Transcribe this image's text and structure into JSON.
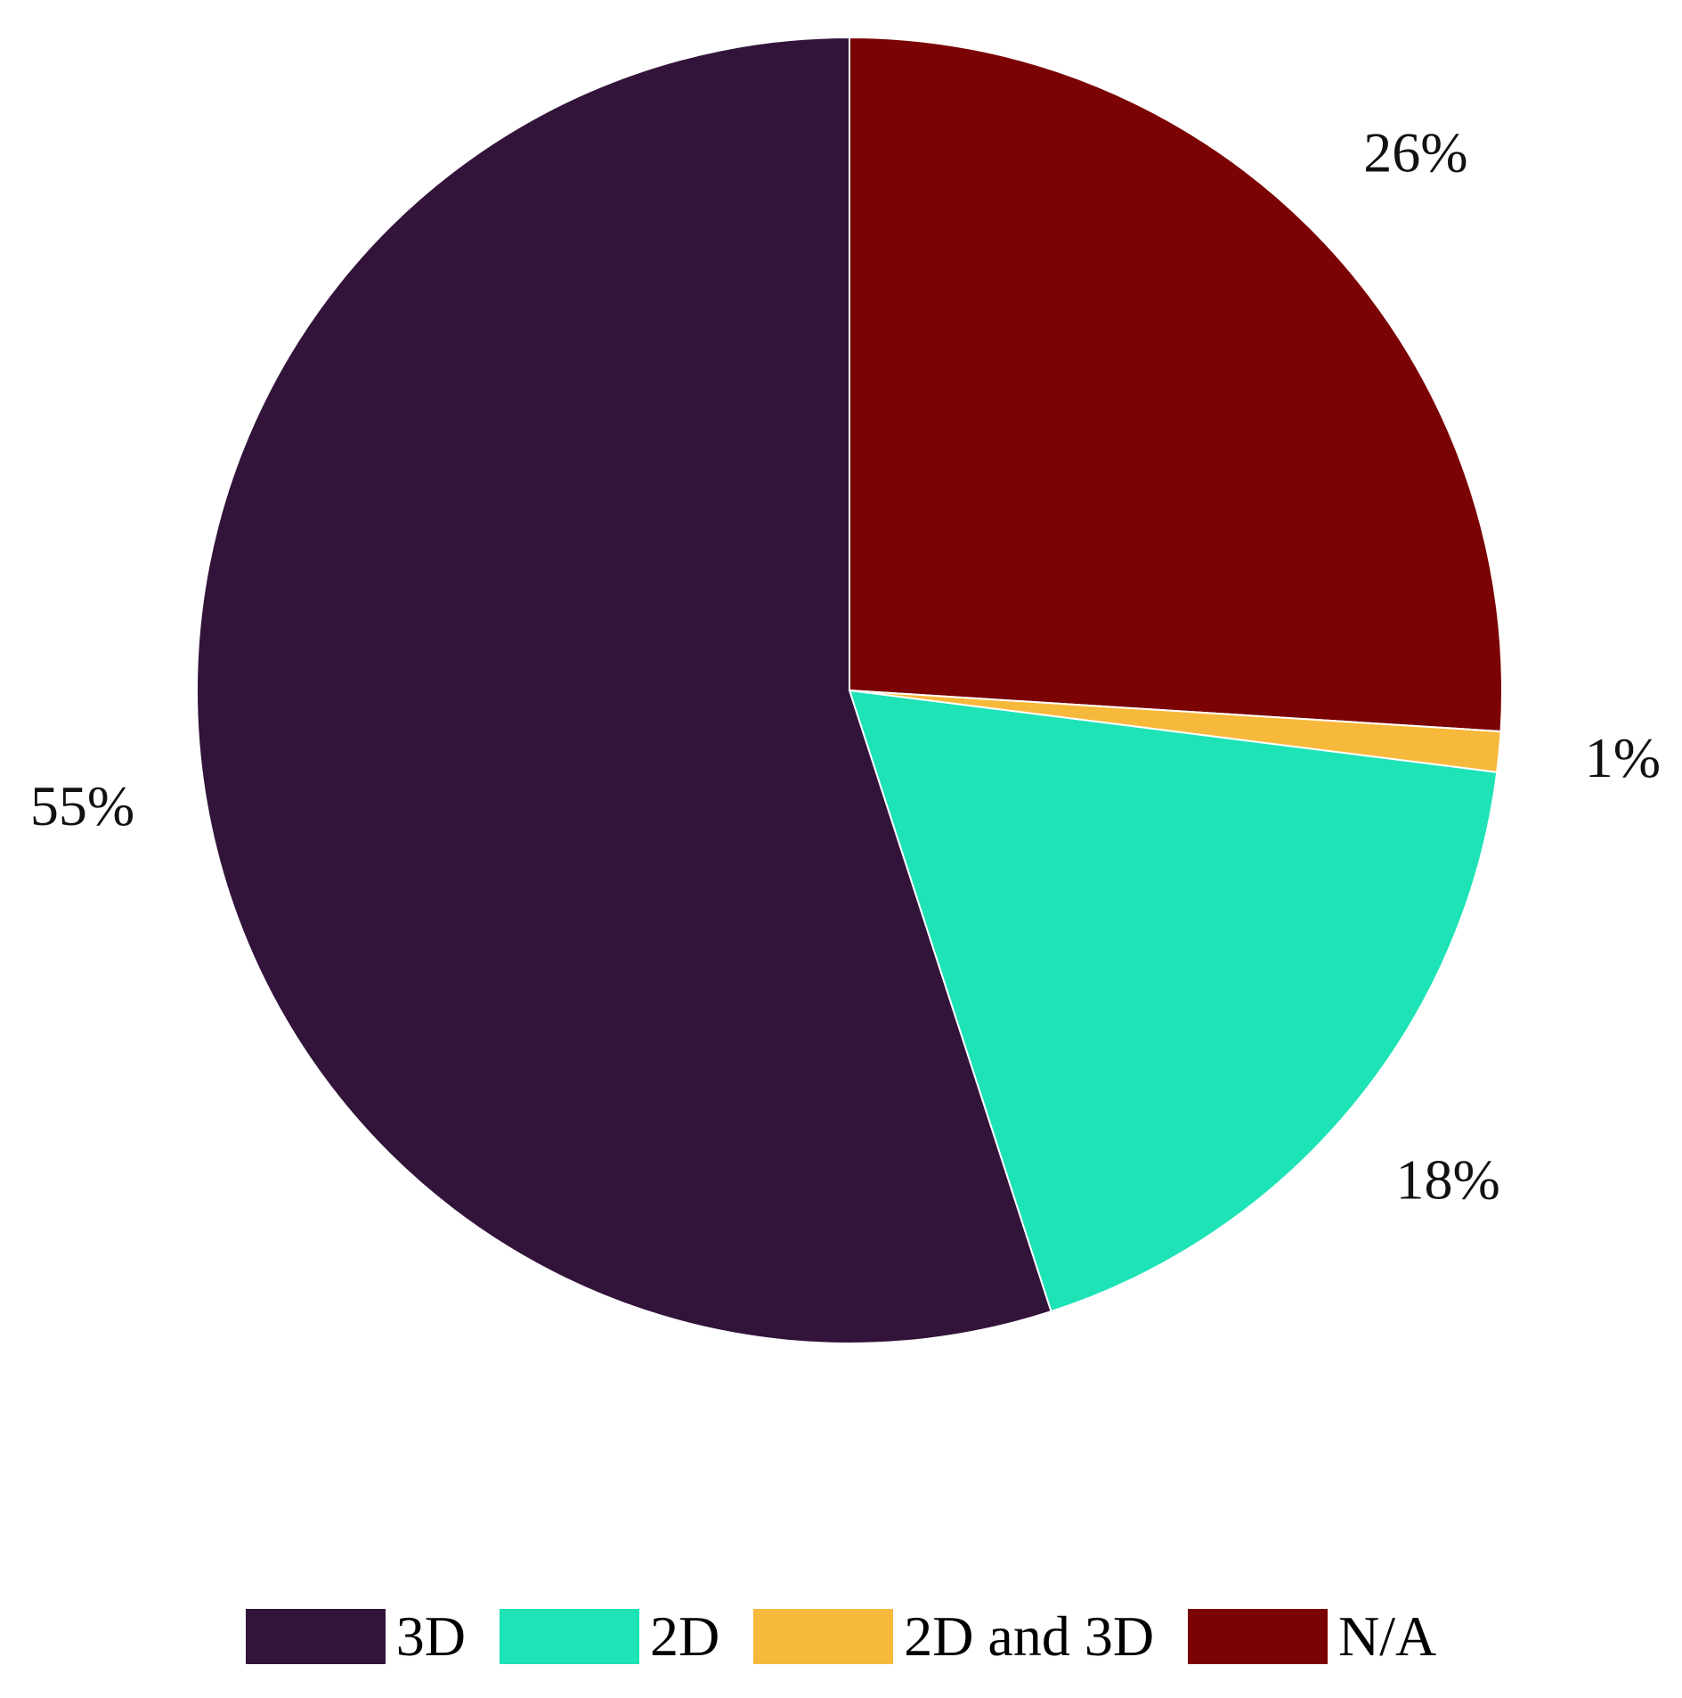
{
  "chart_data": {
    "type": "pie",
    "categories": [
      "3D",
      "2D",
      "2D and 3D",
      "N/A"
    ],
    "values": [
      55,
      18,
      1,
      26
    ],
    "value_labels": [
      "55%",
      "18%",
      "1%",
      "26%"
    ],
    "colors": [
      "#32133a",
      "#1de3b6",
      "#f7b93b",
      "#7b0303"
    ],
    "legend": "bottom"
  }
}
